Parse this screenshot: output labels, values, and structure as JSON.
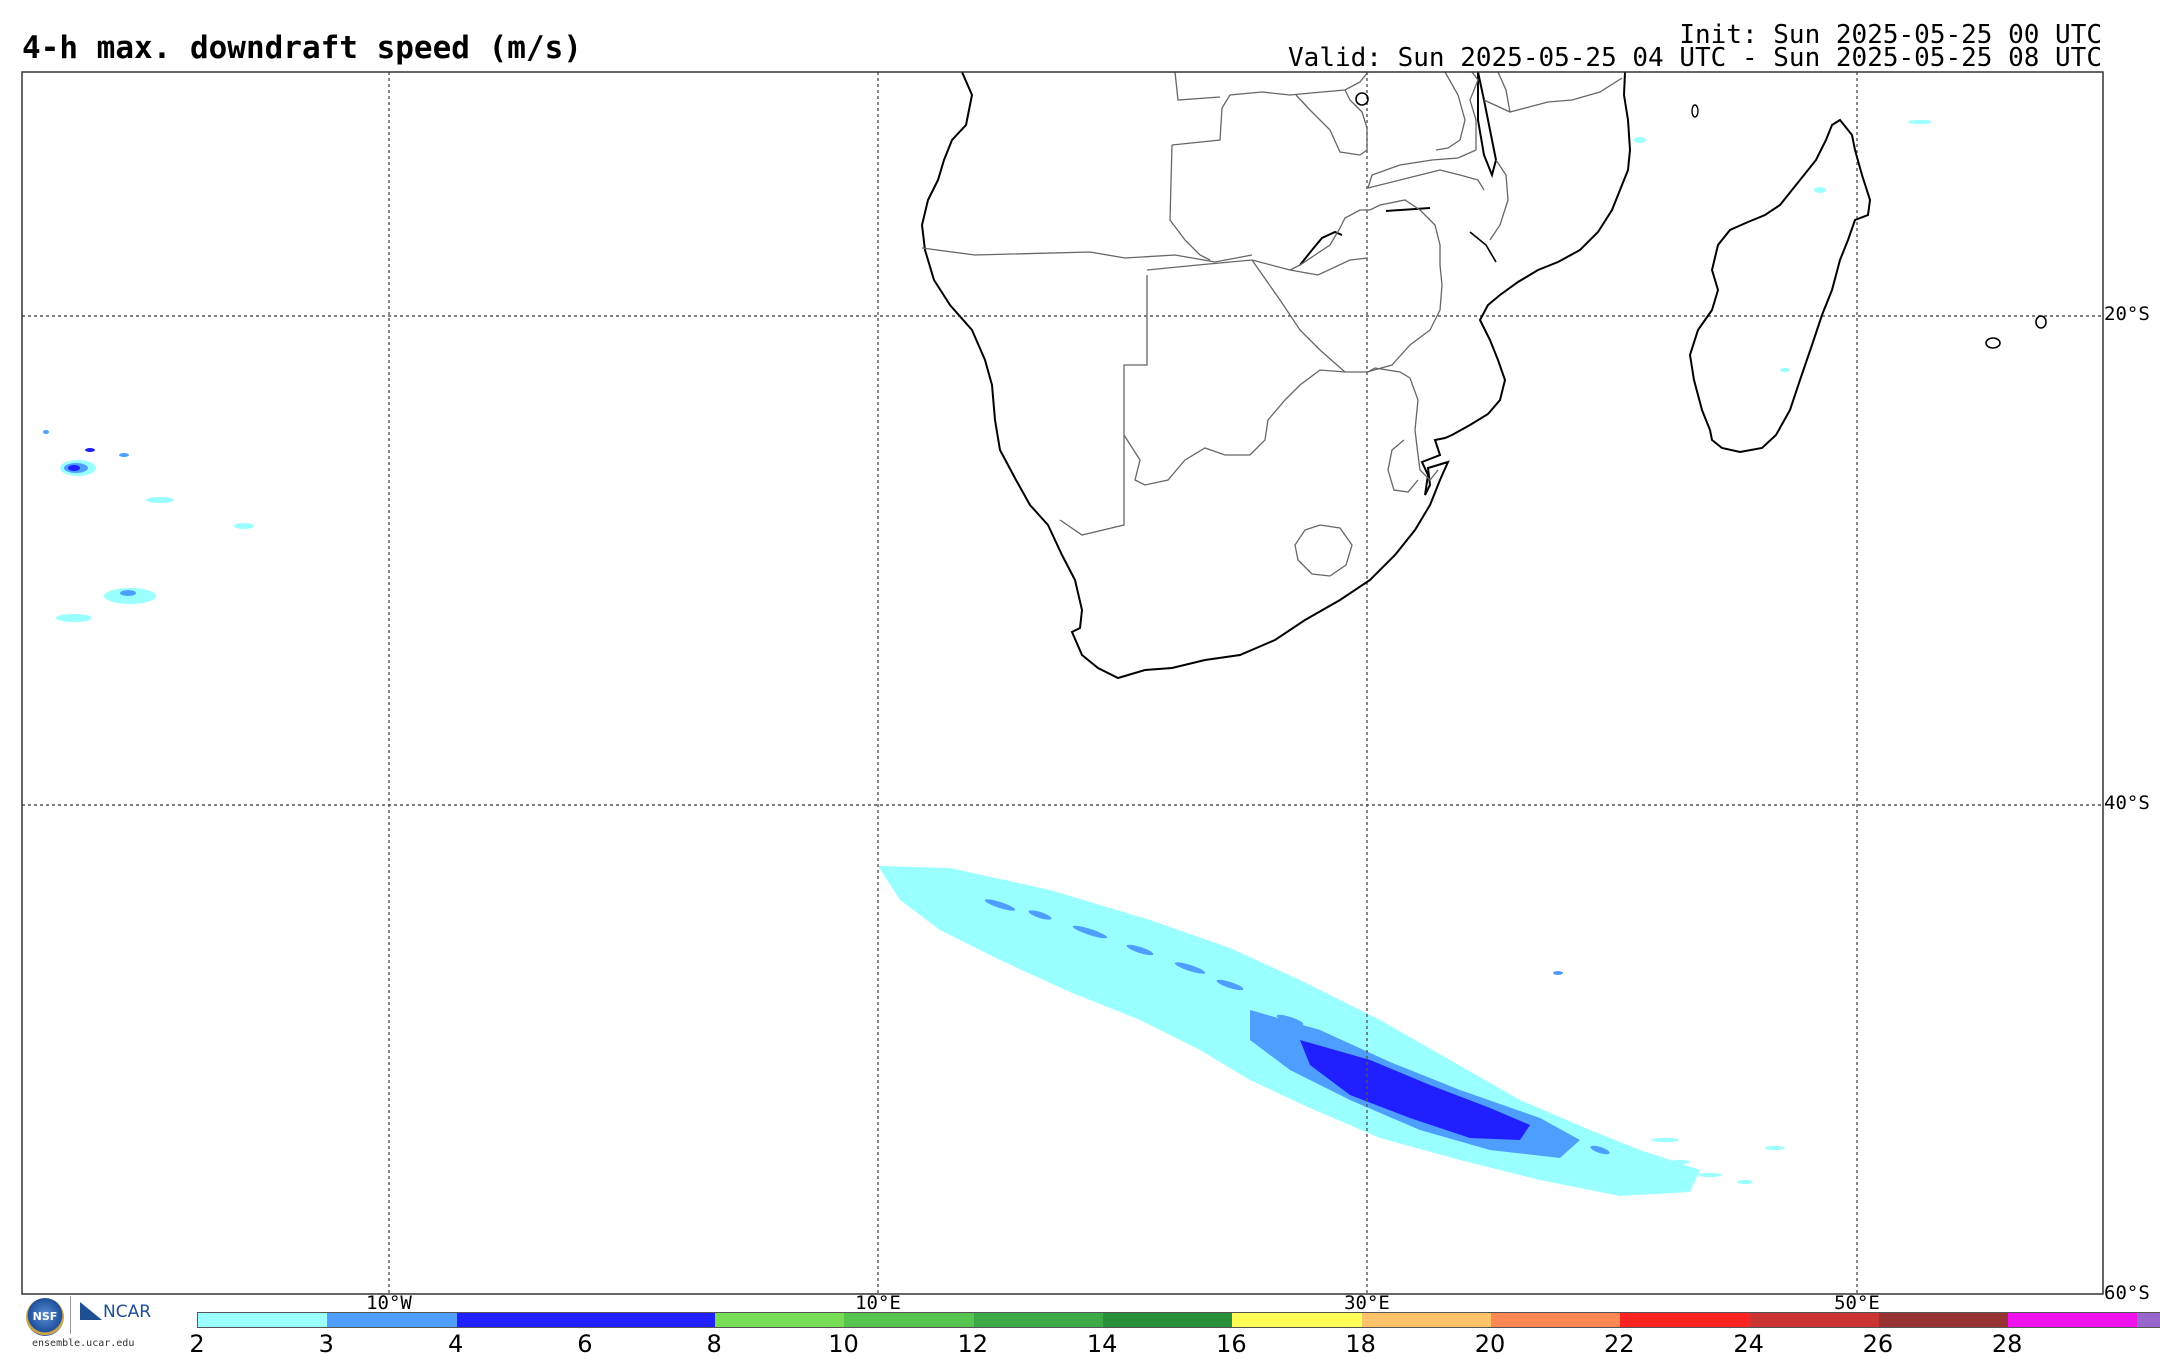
{
  "header": {
    "title": "4-h max. downdraft speed (m/s)",
    "init": "Init: Sun 2025-05-25 00 UTC",
    "valid": "Valid: Sun 2025-05-25 04 UTC - Sun 2025-05-25 08 UTC"
  },
  "map": {
    "extent": {
      "lon_min": -25,
      "lon_max": 60,
      "lat_max": -10,
      "lat_min": -60
    },
    "lon_gridlines": [
      {
        "lon": -10,
        "label": "10°W"
      },
      {
        "lon": 10,
        "label": "10°E"
      },
      {
        "lon": 30,
        "label": "30°E"
      },
      {
        "lon": 50,
        "label": "50°E"
      }
    ],
    "lat_gridlines": [
      {
        "lat": -20,
        "label": "20°S"
      },
      {
        "lat": -40,
        "label": "40°S"
      },
      {
        "lat": -60,
        "label": "60°S"
      }
    ],
    "coastline_color": "#000000",
    "border_color": "#666666",
    "gridline_color": "#555555"
  },
  "colorbar": {
    "ticks": [
      "2",
      "3",
      "4",
      "6",
      "8",
      "10",
      "12",
      "14",
      "16",
      "18",
      "20",
      "22",
      "24",
      "26",
      "28"
    ],
    "colors": [
      "#99ffff",
      "#4d9eff",
      "#1f1fff",
      "#1f1fff",
      "#76dd55",
      "#55c450",
      "#3caa44",
      "#2a8f3a",
      "#ffff55",
      "#ffc46a",
      "#ff8855",
      "#ff2222",
      "#cc3333",
      "#993333",
      "#ee11ee",
      "#9966cc"
    ]
  },
  "logos": {
    "nsf_text": "NSF",
    "ncar_text": "NCAR",
    "site": "ensemble.ucar.edu"
  }
}
